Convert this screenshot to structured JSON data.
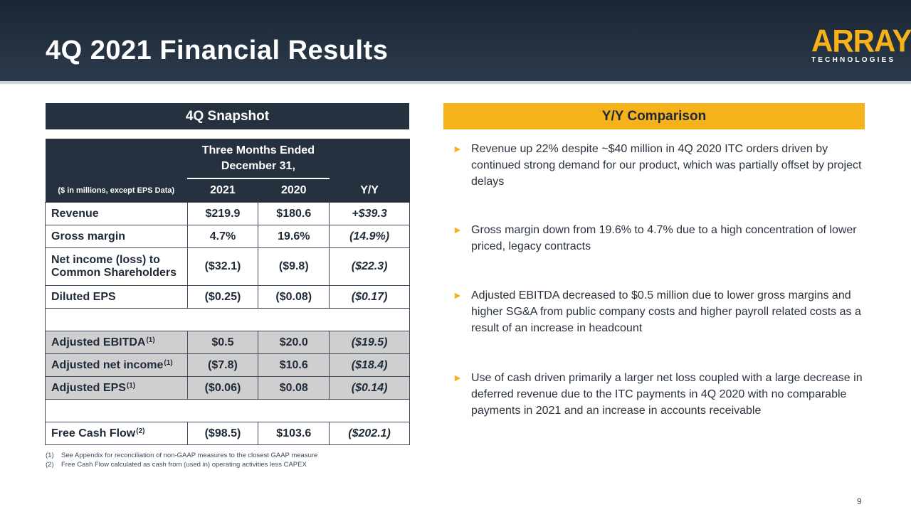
{
  "header": {
    "title": "4Q 2021 Financial Results",
    "logo_main": "ARRAY",
    "logo_sub": "TECHNOLOGIES"
  },
  "snapshot": {
    "heading": "4Q Snapshot",
    "period_line1": "Three Months Ended",
    "period_line2": "December 31,",
    "units": "($ in millions, except EPS Data)",
    "col_2021": "2021",
    "col_2020": "2020",
    "col_yy": "Y/Y",
    "rows": [
      {
        "label": "Revenue",
        "sup": "",
        "v2021": "$219.9",
        "v2020": "$180.6",
        "yy": "+$39.3"
      },
      {
        "label": "Gross margin",
        "sup": "",
        "v2021": "4.7%",
        "v2020": "19.6%",
        "yy": "(14.9%)"
      },
      {
        "label": "Net income (loss) to Common Shareholders",
        "sup": "",
        "v2021": "($32.1)",
        "v2020": "($9.8)",
        "yy": "($22.3)"
      },
      {
        "label": "Diluted EPS",
        "sup": "",
        "v2021": "($0.25)",
        "v2020": "($0.08)",
        "yy": "($0.17)"
      },
      {
        "label": "Adjusted EBITDA",
        "sup": "(1)",
        "v2021": "$0.5",
        "v2020": "$20.0",
        "yy": "($19.5)"
      },
      {
        "label": "Adjusted net income",
        "sup": "(1)",
        "v2021": "($7.8)",
        "v2020": "$10.6",
        "yy": "($18.4)"
      },
      {
        "label": "Adjusted EPS",
        "sup": "(1)",
        "v2021": "($0.06)",
        "v2020": "$0.08",
        "yy": "($0.14)"
      },
      {
        "label": "Free Cash Flow",
        "sup": "(2)",
        "v2021": "($98.5)",
        "v2020": "$103.6",
        "yy": "($202.1)"
      }
    ]
  },
  "footnotes": [
    {
      "num": "(1)",
      "text": "See Appendix for reconciliation of non-GAAP measures to the closest GAAP measure"
    },
    {
      "num": "(2)",
      "text": "Free Cash Flow calculated as cash from (used in) operating activities less CAPEX"
    }
  ],
  "comparison": {
    "heading": "Y/Y Comparison",
    "bullets": [
      "Revenue up 22% despite ~$40 million in 4Q 2020 ITC orders driven by continued strong demand for our product, which was partially offset by project delays",
      "Gross margin down from 19.6% to 4.7% due to a high concentration of lower priced, legacy contracts",
      "Adjusted EBITDA decreased to $0.5 million due to lower gross margins and higher SG&A from public company costs and higher payroll related costs as a result of an increase in headcount",
      "Use of cash driven primarily a larger net loss coupled with a large decrease in deferred revenue due to the ITC payments in 4Q 2020 with no comparable payments in 2021 and an increase in accounts receivable"
    ]
  },
  "page_number": "9",
  "colors": {
    "navy": "#26313f",
    "accent": "#f5b21a",
    "shade": "#cfcfcf"
  }
}
